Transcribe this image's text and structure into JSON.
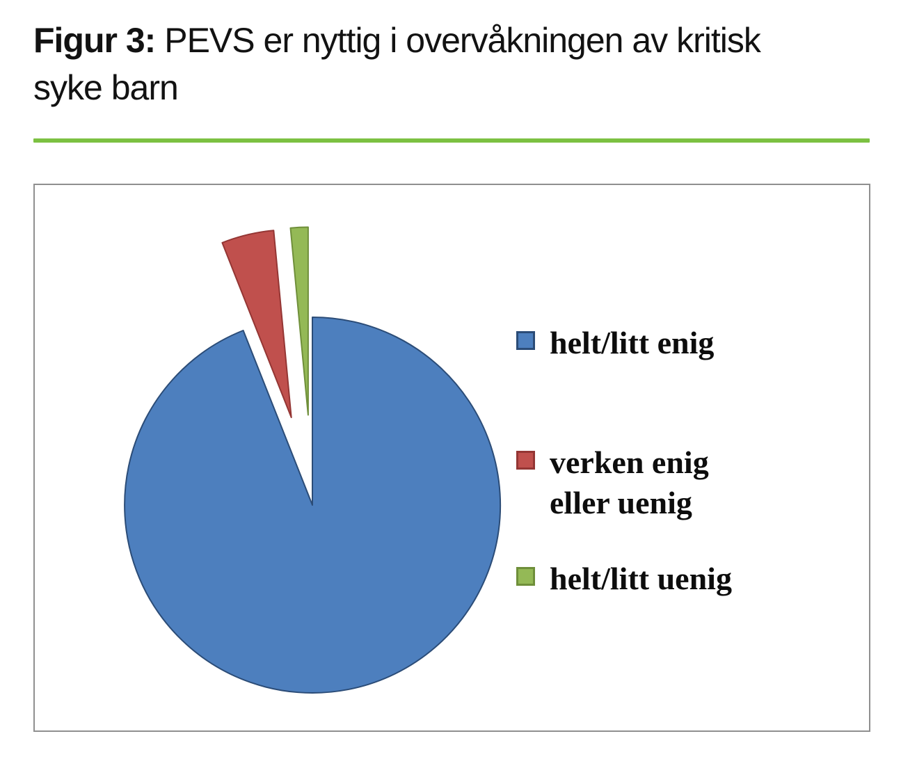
{
  "title": {
    "prefix": "Figur 3:",
    "rest": " PEVS er nyttig i overvåkningen av kritisk syke barn"
  },
  "divider_color": "#7cc142",
  "chart_box": {
    "border_color": "#8f8f8f",
    "background": "#ffffff"
  },
  "chart_data": {
    "type": "pie",
    "title": "PEVS er nyttig i overvåkningen av kritisk syke barn",
    "values_are": "percent_estimated",
    "start_angle_deg": 0,
    "direction": "clockwise",
    "explode_fraction": 0.48,
    "legend_position": "right",
    "series": [
      {
        "name": "helt/litt enig",
        "value": 94.0,
        "color": "#4d7fbe",
        "border_color": "#2b4c77",
        "exploded": false
      },
      {
        "name": "verken enig eller uenig",
        "value": 4.5,
        "color": "#c0504d",
        "border_color": "#943634",
        "exploded": true
      },
      {
        "name": "helt/litt uenig",
        "value": 1.5,
        "color": "#94b956",
        "border_color": "#6f8f3a",
        "exploded": true
      }
    ]
  }
}
